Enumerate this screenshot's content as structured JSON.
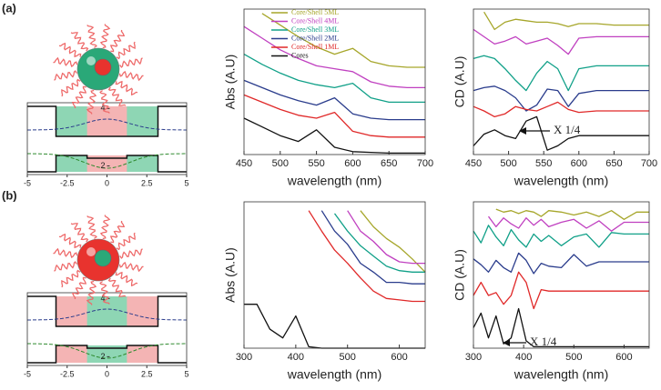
{
  "panel_labels": [
    "(a)",
    "(b)"
  ],
  "chart_data": [
    {
      "type": "potential",
      "xlim": [
        -5,
        5
      ],
      "xticks": [
        -5,
        -2.5,
        0,
        2.5,
        5
      ],
      "ylim": [
        1.7,
        4.2
      ],
      "yticks": [
        4,
        2
      ],
      "core_color": "#f4b4b4",
      "shell_color": "#8ed6b4"
    },
    {
      "type": "line",
      "xlabel": "wavelength (nm)",
      "ylabel": "Abs (A.U)",
      "x": [
        450,
        475,
        500,
        525,
        550,
        575,
        600,
        625,
        650,
        675,
        700
      ],
      "xlim": [
        450,
        700
      ],
      "xticks": [
        450,
        500,
        550,
        600,
        650,
        700
      ],
      "ylim": [
        0,
        10
      ],
      "series": [
        {
          "name": "Core/Shell 5ML",
          "color": "#a6a62a",
          "values": [
            null,
            9.7,
            8.9,
            8.1,
            7.4,
            6.9,
            7.3,
            6.4,
            6.1,
            6,
            6
          ]
        },
        {
          "name": "Core/Shell 4ML",
          "color": "#c040c0",
          "values": [
            8.8,
            8,
            7.2,
            6.6,
            6.1,
            5.9,
            5.7,
            5,
            4.7,
            4.6,
            4.6
          ]
        },
        {
          "name": "Core/Shell 3ML",
          "color": "#10a088",
          "values": [
            6.9,
            6.2,
            5.6,
            5.1,
            4.8,
            4.6,
            4.9,
            3.9,
            3.6,
            3.6,
            3.6
          ]
        },
        {
          "name": "Core/Shell 2ML",
          "color": "#2a3c8c",
          "values": [
            5.1,
            4.6,
            4.1,
            3.7,
            3.4,
            3.9,
            2.8,
            2.5,
            2.4,
            2.4,
            2.4
          ]
        },
        {
          "name": "Core/Shell 1ML",
          "color": "#e02828",
          "values": [
            4.1,
            3.6,
            3.1,
            2.7,
            2.5,
            2.9,
            1.6,
            1.3,
            1.2,
            1.2,
            1.2
          ]
        },
        {
          "name": "Cores",
          "color": "#111111",
          "values": [
            2.5,
            1.9,
            1.3,
            0.9,
            1.7,
            0.5,
            0.2,
            0.15,
            0.1,
            0.1,
            0.1
          ]
        }
      ]
    },
    {
      "type": "line",
      "xlabel": "wavelength (nm)",
      "ylabel": "CD (A.U)",
      "annotation": "X 1/4",
      "x": [
        450,
        465,
        480,
        495,
        510,
        525,
        540,
        555,
        570,
        585,
        600,
        625,
        650,
        675,
        700
      ],
      "xlim": [
        450,
        700
      ],
      "xticks": [
        450,
        500,
        550,
        600,
        650,
        700
      ],
      "ylim": [
        0,
        10
      ],
      "series": [
        {
          "color": "#a6a62a",
          "values": [
            null,
            9.8,
            8.6,
            9.1,
            9.3,
            9.2,
            9.1,
            9.1,
            9.0,
            8.8,
            9.0,
            9.0,
            8.9,
            8.9,
            8.9
          ]
        },
        {
          "color": "#c040c0",
          "values": [
            8.6,
            8.1,
            7.6,
            7.8,
            8.1,
            7.6,
            7.8,
            8.0,
            7.5,
            6.9,
            8.0,
            8.1,
            8.1,
            8.1,
            8.1
          ]
        },
        {
          "color": "#10a088",
          "values": [
            6.6,
            6.8,
            6.6,
            5.9,
            5.1,
            4.4,
            5.6,
            6.4,
            5.9,
            4.4,
            5.9,
            6.1,
            6.1,
            6.1,
            6.1
          ]
        },
        {
          "color": "#2a3c8c",
          "values": [
            4.4,
            4.6,
            4.7,
            4.4,
            3.9,
            3.0,
            3.4,
            4.5,
            4.4,
            3.3,
            4.2,
            4.4,
            4.4,
            4.4,
            4.4
          ]
        },
        {
          "color": "#e02828",
          "values": [
            3.3,
            3.0,
            2.6,
            2.8,
            3.3,
            3.1,
            3.0,
            3.3,
            3.6,
            3.1,
            2.9,
            3.0,
            3.0,
            3.0,
            3.0
          ]
        },
        {
          "color": "#111111",
          "values": [
            0.6,
            1.4,
            1.7,
            1.3,
            1.1,
            2.3,
            2.6,
            0.3,
            0.6,
            1.1,
            1.3,
            1.3,
            1.3,
            1.3,
            1.3
          ]
        }
      ]
    },
    {
      "type": "potential",
      "xlim": [
        -5,
        5
      ],
      "xticks": [
        -5,
        -2.5,
        0,
        2.5,
        5
      ],
      "ylim": [
        1.7,
        4.2
      ],
      "yticks": [
        4,
        2
      ],
      "core_color": "#8ed6b4",
      "shell_color": "#f4b4b4"
    },
    {
      "type": "line",
      "xlabel": "wavelength (nm)",
      "ylabel": "Abs (A.U)",
      "x": [
        300,
        325,
        350,
        375,
        400,
        425,
        450,
        475,
        500,
        525,
        550,
        575,
        600,
        625,
        650
      ],
      "xlim": [
        300,
        650
      ],
      "xticks": [
        300,
        400,
        500,
        600
      ],
      "ylim": [
        0,
        10
      ],
      "series": [
        {
          "color": "#a6a62a",
          "values": [
            null,
            null,
            null,
            null,
            null,
            null,
            null,
            null,
            null,
            9.4,
            8.3,
            7.5,
            6.9,
            6.1,
            5.2
          ]
        },
        {
          "color": "#c040c0",
          "values": [
            null,
            null,
            null,
            null,
            null,
            null,
            null,
            null,
            9.4,
            8.0,
            7.3,
            6.4,
            5.9,
            5.8,
            5.8
          ]
        },
        {
          "color": "#10a088",
          "values": [
            null,
            null,
            null,
            null,
            null,
            null,
            null,
            9.2,
            8.0,
            7.0,
            6.3,
            5.6,
            5.3,
            5.2,
            5.2
          ]
        },
        {
          "color": "#2a3c8c",
          "values": [
            null,
            null,
            null,
            null,
            null,
            null,
            9.4,
            8.0,
            7.1,
            5.8,
            5.2,
            4.5,
            4.5,
            4.4,
            4.4
          ]
        },
        {
          "color": "#e02828",
          "values": [
            null,
            null,
            null,
            null,
            null,
            9.4,
            8.0,
            6.7,
            5.8,
            4.8,
            3.9,
            3.4,
            3.3,
            3.2,
            3.2
          ]
        },
        {
          "color": "#111111",
          "values": [
            3.0,
            3.0,
            1.3,
            0.7,
            2.2,
            0.1,
            0,
            0,
            0,
            0,
            0,
            0,
            0,
            0,
            0
          ]
        }
      ]
    },
    {
      "type": "line",
      "xlabel": "wavelength (nm)",
      "ylabel": "CD (A.U)",
      "annotation": "X 1/4",
      "x": [
        300,
        315,
        330,
        345,
        360,
        375,
        390,
        405,
        420,
        435,
        450,
        475,
        500,
        525,
        550,
        575,
        600,
        625,
        650
      ],
      "xlim": [
        300,
        650
      ],
      "xticks": [
        300,
        400,
        500,
        600
      ],
      "ylim": [
        0,
        10
      ],
      "series": [
        {
          "color": "#a6a62a",
          "values": [
            null,
            null,
            null,
            9.5,
            9.3,
            9.4,
            9.2,
            9.4,
            9.3,
            9.0,
            9.4,
            9.3,
            9.1,
            9.3,
            9.0,
            9.4,
            8.8,
            9.3,
            9.3
          ]
        },
        {
          "color": "#c040c0",
          "values": [
            null,
            null,
            9.0,
            8.3,
            8.9,
            8.5,
            8.2,
            8.9,
            8.4,
            8.8,
            8.3,
            8.6,
            8.8,
            8.2,
            8.7,
            8.0,
            8.6,
            8.6,
            8.6
          ]
        },
        {
          "color": "#10a088",
          "values": [
            8.0,
            7.2,
            8.4,
            7.6,
            7.0,
            8.1,
            7.4,
            6.9,
            7.8,
            7.3,
            7.7,
            7.0,
            7.6,
            7.8,
            6.9,
            7.9,
            7.8,
            7.8,
            7.8
          ]
        },
        {
          "color": "#2a3c8c",
          "values": [
            6.1,
            5.7,
            5.2,
            6.0,
            5.5,
            5.2,
            6.5,
            6.0,
            5.1,
            5.8,
            5.6,
            5.5,
            6.4,
            5.6,
            5.9,
            5.9,
            5.9,
            5.9,
            5.9
          ]
        },
        {
          "color": "#e02828",
          "values": [
            3.6,
            4.5,
            3.6,
            3.8,
            3.0,
            3.6,
            5.2,
            4.5,
            2.7,
            4.0,
            3.9,
            3.9,
            3.9,
            3.9,
            3.9,
            3.9,
            3.9,
            3.9,
            3.9
          ]
        },
        {
          "color": "#111111",
          "values": [
            1.4,
            2.4,
            0.7,
            2.2,
            0.3,
            0.7,
            2.7,
            0.5,
            0.1,
            0.1,
            0.1,
            0.1,
            0.1,
            0.1,
            0.1,
            0.1,
            0.1,
            0.1,
            0.1
          ]
        }
      ]
    }
  ]
}
